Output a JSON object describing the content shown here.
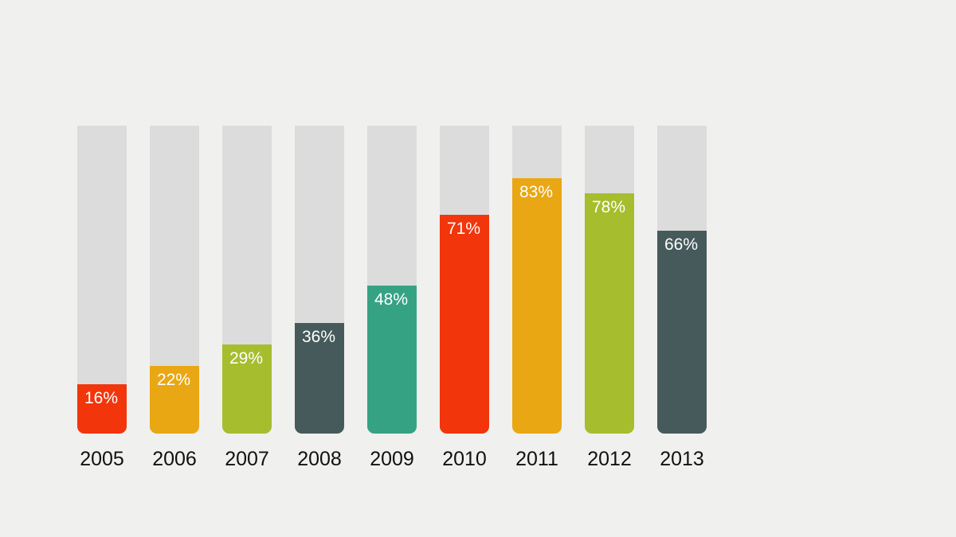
{
  "page": {
    "background_color": "#f0f0ef"
  },
  "chart_data": {
    "type": "bar",
    "title": "",
    "xlabel": "",
    "ylabel": "",
    "ylim": [
      0,
      100
    ],
    "grid": false,
    "legend": "none",
    "categories": [
      "2005",
      "2006",
      "2007",
      "2008",
      "2009",
      "2010",
      "2011",
      "2012",
      "2013"
    ],
    "values": [
      16,
      22,
      29,
      36,
      48,
      71,
      83,
      78,
      66
    ],
    "value_labels": [
      "16%",
      "22%",
      "29%",
      "36%",
      "48%",
      "71%",
      "83%",
      "78%",
      "66%"
    ],
    "bar_colors": [
      "#f2350b",
      "#e9a713",
      "#a6bd2e",
      "#475a5b",
      "#36a284",
      "#f2350b",
      "#e9a713",
      "#a6bd2e",
      "#475a5b"
    ],
    "track_color": "#dcdcdc",
    "value_label_color": "#ffffff",
    "year_label_color": "#111111"
  }
}
